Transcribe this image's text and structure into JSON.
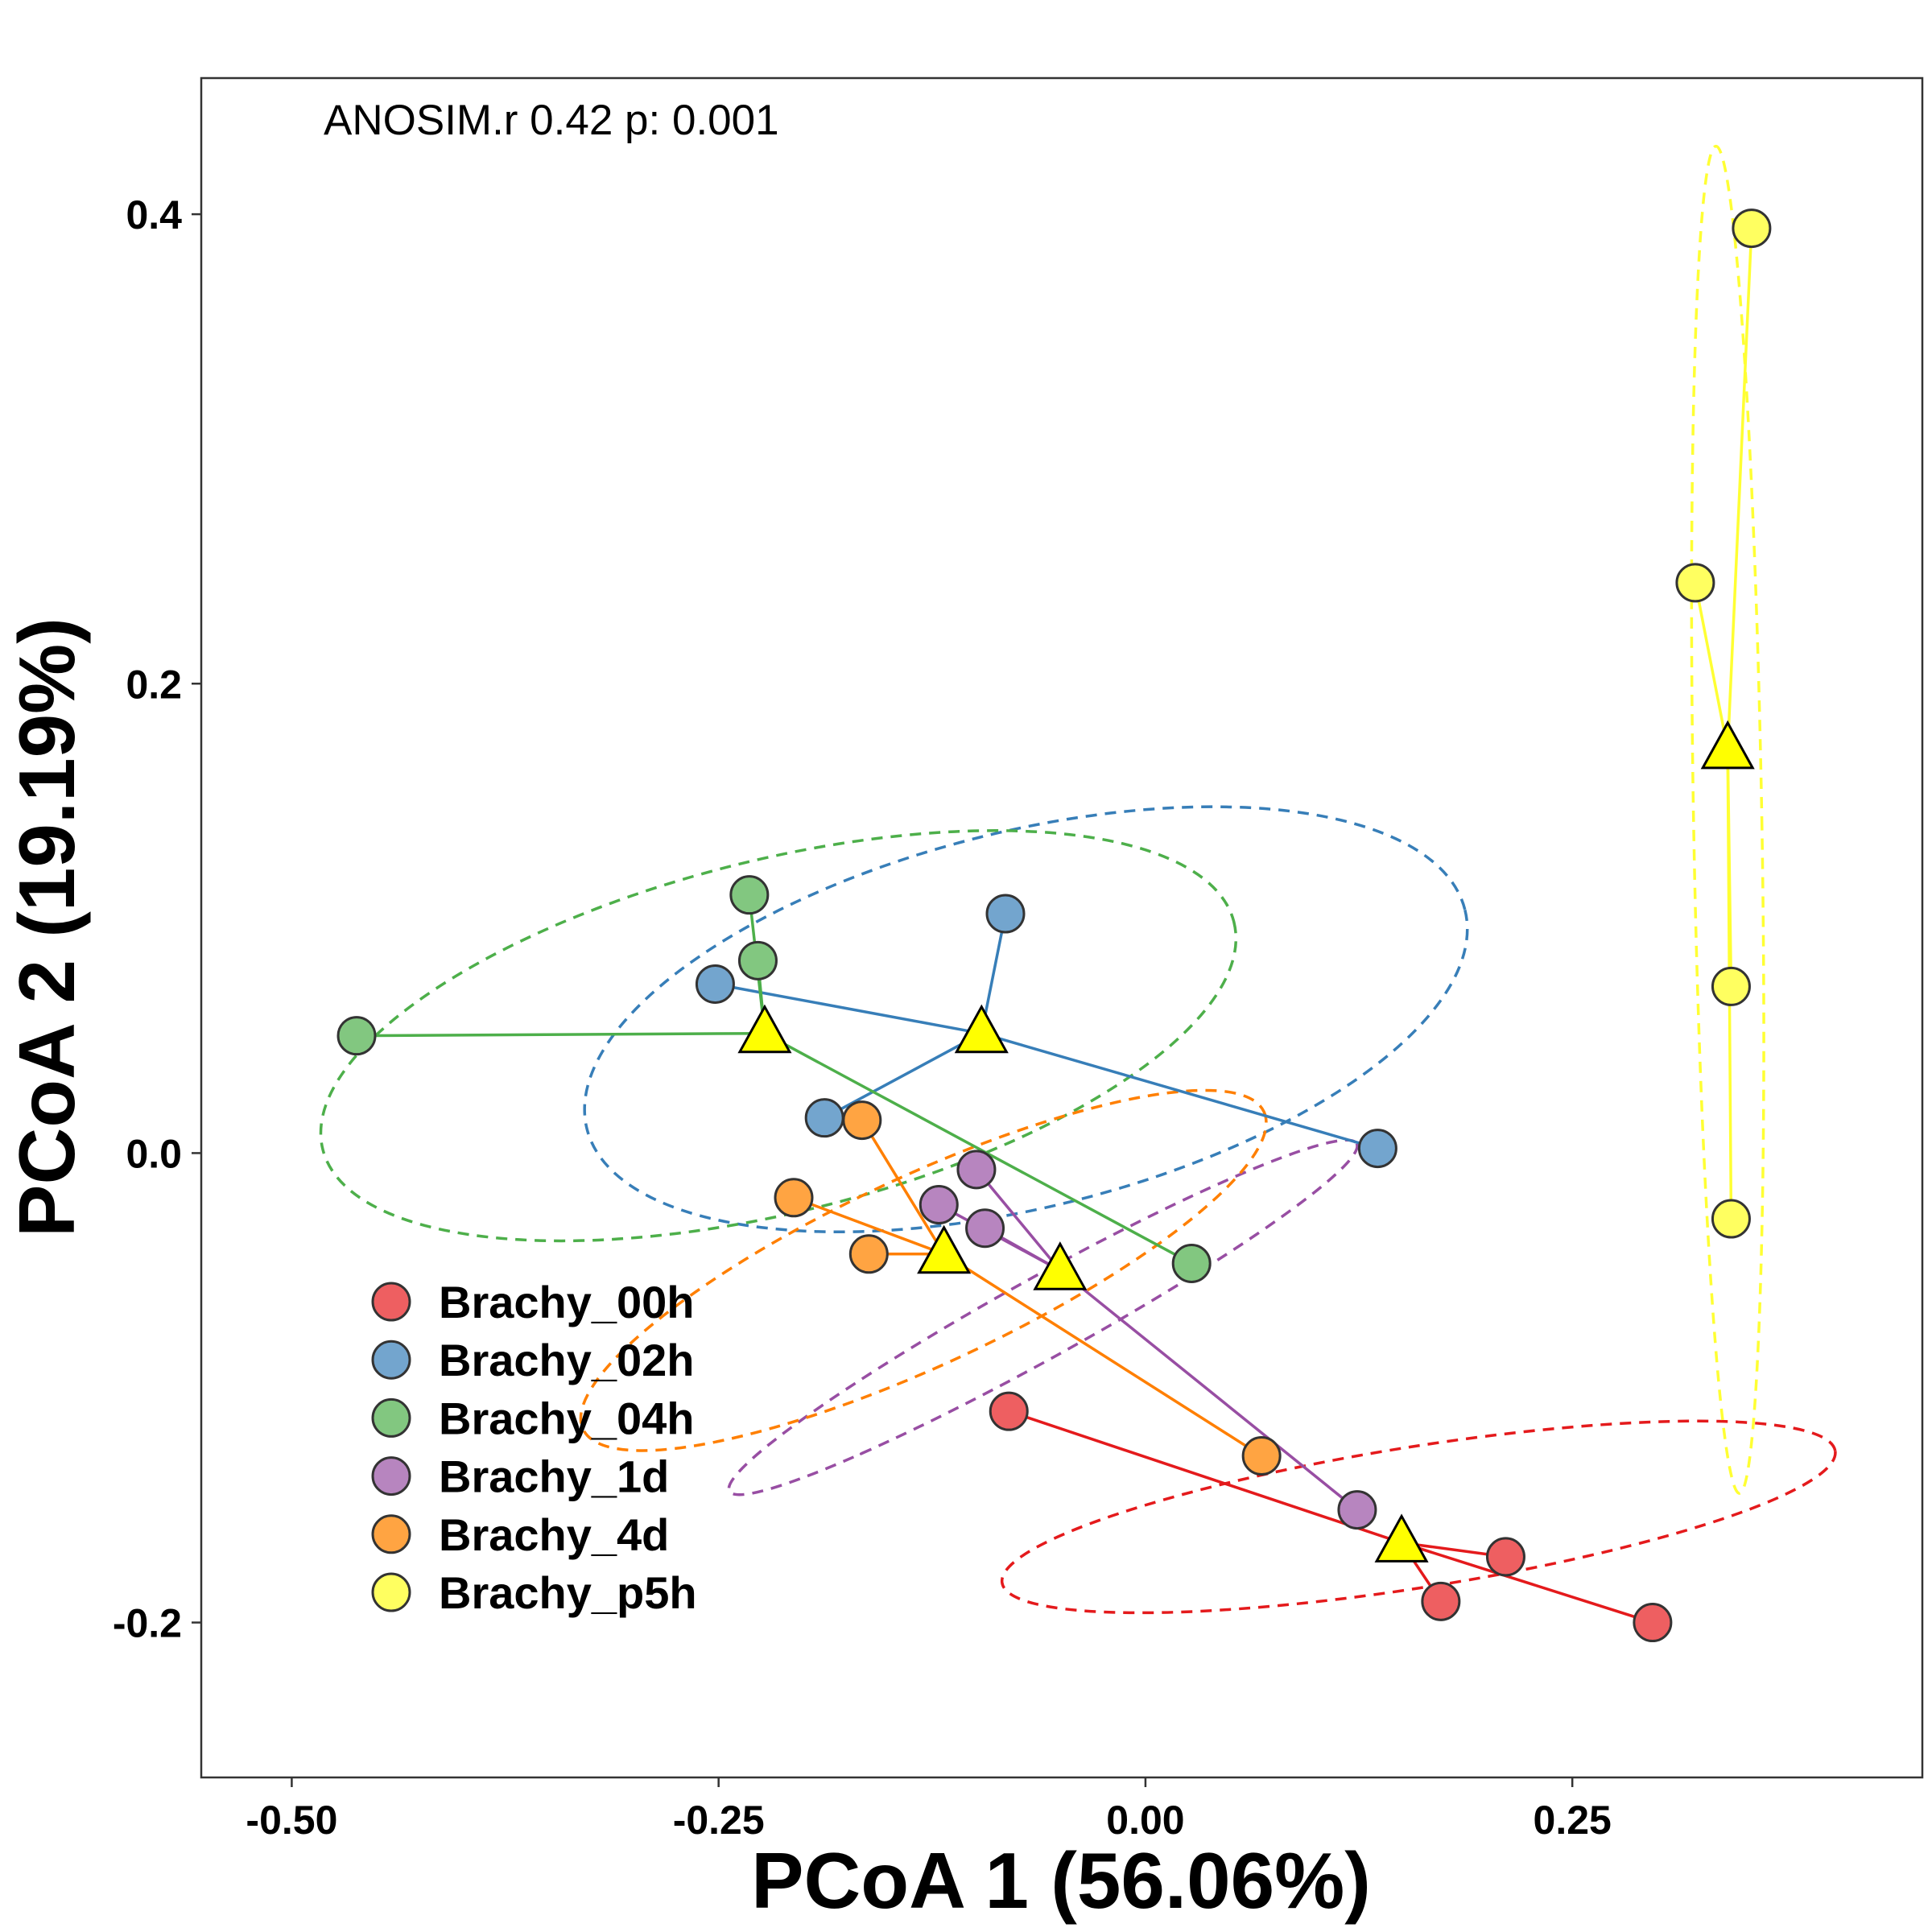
{
  "chart_data": {
    "type": "scatter",
    "title": "",
    "xlabel": "PCoA 1 (56.06%)",
    "ylabel": "PCoA 2 (19.19%)",
    "xlim": [
      -0.553,
      0.455
    ],
    "ylim": [
      -0.266,
      0.458
    ],
    "x_ticks": [
      -0.5,
      -0.25,
      0.0,
      0.25
    ],
    "x_tick_labels": [
      "-0.50",
      "-0.25",
      "0.00",
      "0.25"
    ],
    "y_ticks": [
      -0.2,
      0.0,
      0.2,
      0.4
    ],
    "y_tick_labels": [
      "-0.2",
      "0.0",
      "0.2",
      "0.4"
    ],
    "grid": false,
    "legend_position": "bottom-left",
    "annotation": "ANOSIM.r 0.42 p: 0.001",
    "centroid_marker": "triangle",
    "centroid_color": "#FFFF00",
    "series": [
      {
        "name": "Brachy_00h",
        "color": "#E41A1C",
        "fill": "#EE5F61",
        "points": [
          [
            -0.08,
            -0.11
          ],
          [
            0.173,
            -0.191
          ],
          [
            0.211,
            -0.172
          ],
          [
            0.297,
            -0.2
          ]
        ],
        "centroid": [
          0.15,
          -0.166
        ],
        "ellipse": {
          "center": [
            0.16,
            -0.155
          ],
          "rx": 0.247,
          "ry": 0.03,
          "angle_deg": -9
        }
      },
      {
        "name": "Brachy_02h",
        "color": "#377EB8",
        "fill": "#73A5CE",
        "points": [
          [
            -0.252,
            0.072
          ],
          [
            -0.188,
            0.015
          ],
          [
            -0.082,
            0.102
          ],
          [
            0.136,
            0.002
          ]
        ],
        "centroid": [
          -0.096,
          0.051
        ],
        "ellipse": {
          "center": [
            -0.07,
            0.057
          ],
          "rx": 0.265,
          "ry": 0.08,
          "angle_deg": -14
        }
      },
      {
        "name": "Brachy_04h",
        "color": "#4DAF4A",
        "fill": "#82C780",
        "points": [
          [
            -0.462,
            0.05
          ],
          [
            -0.232,
            0.11
          ],
          [
            -0.227,
            0.082
          ],
          [
            0.027,
            -0.047
          ]
        ],
        "centroid": [
          -0.223,
          0.051
        ],
        "ellipse": {
          "center": [
            -0.215,
            0.05
          ],
          "rx": 0.275,
          "ry": 0.075,
          "angle_deg": -14
        }
      },
      {
        "name": "Brachy_1d",
        "color": "#984EA3",
        "fill": "#B785BF",
        "points": [
          [
            -0.099,
            -0.007
          ],
          [
            -0.121,
            -0.022
          ],
          [
            -0.094,
            -0.032
          ],
          [
            0.124,
            -0.152
          ]
        ],
        "centroid": [
          -0.05,
          -0.05
        ],
        "ellipse": {
          "center": [
            -0.06,
            -0.07
          ],
          "rx": 0.21,
          "ry": 0.017,
          "angle_deg": -29
        }
      },
      {
        "name": "Brachy_4d",
        "color": "#FF7F00",
        "fill": "#FFA442",
        "points": [
          [
            -0.166,
            0.014
          ],
          [
            -0.206,
            -0.019
          ],
          [
            -0.162,
            -0.043
          ],
          [
            0.068,
            -0.129
          ]
        ],
        "centroid": [
          -0.118,
          -0.043
        ],
        "ellipse": {
          "center": [
            -0.13,
            -0.05
          ],
          "rx": 0.22,
          "ry": 0.04,
          "angle_deg": -25
        }
      },
      {
        "name": "Brachy_p5h",
        "color": "#FFFF33",
        "fill": "#FFFF60",
        "points": [
          [
            0.355,
            0.394
          ],
          [
            0.322,
            0.243
          ],
          [
            0.343,
            0.071
          ],
          [
            0.343,
            -0.028
          ]
        ],
        "centroid": [
          0.341,
          0.172
        ],
        "ellipse": {
          "center": [
            0.341,
            0.142
          ],
          "rx": 0.02,
          "ry": 0.287,
          "angle_deg": -1
        }
      }
    ]
  }
}
